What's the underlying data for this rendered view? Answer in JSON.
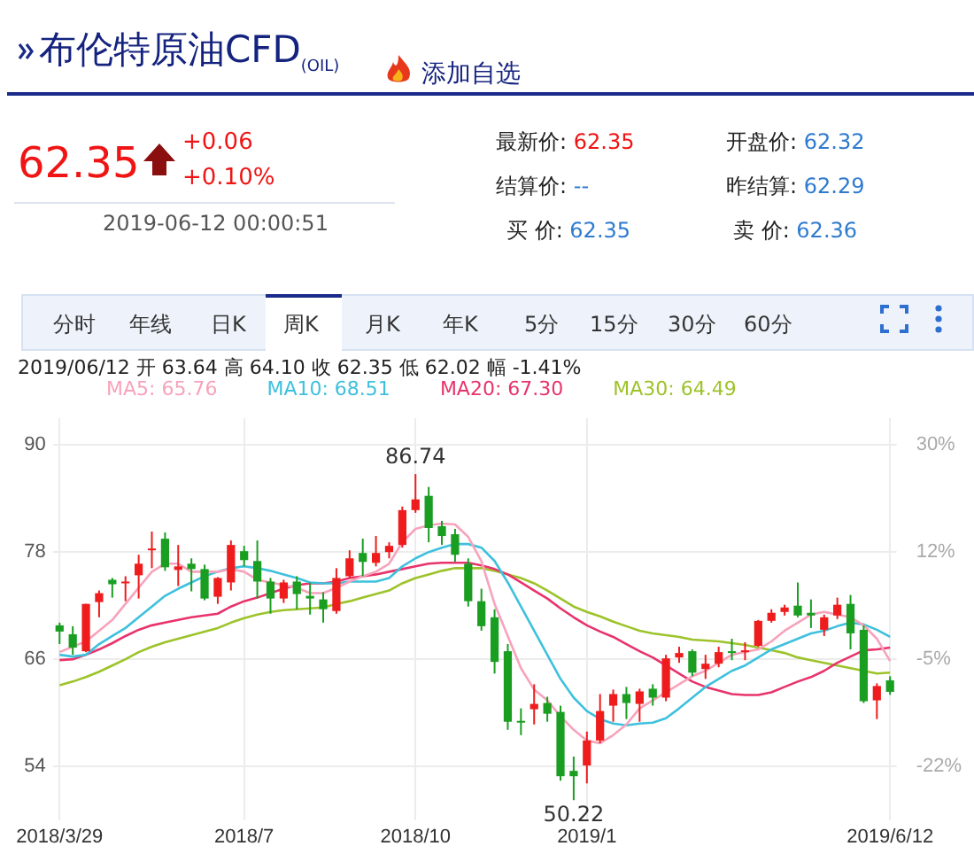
{
  "chart_data": {
    "type": "candlestick",
    "title": "布伦特原油CFD$_{(OIL)}$",
    "categories": [
      "2018/3/29",
      null,
      null,
      null,
      null,
      null,
      null,
      null,
      null,
      null,
      null,
      null,
      null,
      null,
      "2018/7",
      null,
      null,
      null,
      null,
      null,
      null,
      null,
      null,
      null,
      null,
      null,
      null,
      "2018/10",
      null,
      null,
      null,
      null,
      null,
      null,
      null,
      null,
      null,
      null,
      null,
      null,
      "2019/1",
      null,
      null,
      null,
      null,
      null,
      null,
      null,
      null,
      null,
      null,
      null,
      null,
      null,
      null,
      null,
      null,
      null,
      null,
      null,
      null,
      null,
      null,
      "2019/6/12"
    ],
    "ohlc": [
      [
        69.8,
        70.1,
        67.7,
        69.1
      ],
      [
        68.8,
        69.7,
        66.5,
        67.3
      ],
      [
        66.9,
        72.2,
        66.8,
        72.2
      ],
      [
        72.4,
        73.7,
        70.7,
        73.4
      ],
      [
        74.9,
        75.1,
        72.9,
        74.4
      ],
      [
        74.5,
        75.3,
        72.5,
        74.7
      ],
      [
        75.4,
        77.7,
        72.8,
        76.7
      ],
      [
        78.2,
        80.3,
        76.2,
        78.4
      ],
      [
        79.5,
        80.2,
        75.9,
        76.3
      ],
      [
        76.0,
        78.8,
        74.2,
        76.4
      ],
      [
        76.7,
        77.3,
        73.6,
        76.1
      ],
      [
        76.1,
        76.6,
        72.6,
        72.8
      ],
      [
        73.0,
        75.2,
        72.2,
        75.1
      ],
      [
        74.6,
        79.3,
        73.7,
        78.8
      ],
      [
        78.1,
        78.7,
        76.4,
        77.1
      ],
      [
        77.0,
        79.3,
        72.8,
        74.7
      ],
      [
        74.7,
        75.1,
        71.1,
        72.8
      ],
      [
        72.8,
        74.9,
        72.3,
        74.6
      ],
      [
        74.7,
        75.3,
        71.6,
        73.3
      ],
      [
        73.1,
        74.6,
        71.0,
        72.8
      ],
      [
        72.7,
        73.5,
        70.1,
        71.6
      ],
      [
        71.4,
        76.2,
        71.1,
        75.1
      ],
      [
        75.3,
        78.2,
        75.1,
        77.3
      ],
      [
        77.9,
        79.5,
        75.3,
        76.9
      ],
      [
        76.8,
        79.8,
        76.4,
        77.9
      ],
      [
        78.0,
        79.1,
        77.3,
        78.7
      ],
      [
        78.8,
        83.1,
        78.5,
        82.7
      ],
      [
        82.7,
        86.74,
        82.4,
        83.9
      ],
      [
        84.3,
        85.3,
        79.1,
        80.7
      ],
      [
        80.9,
        81.5,
        78.8,
        79.8
      ],
      [
        80.0,
        80.6,
        76.9,
        77.7
      ],
      [
        76.7,
        77.3,
        71.9,
        72.5
      ],
      [
        72.5,
        73.9,
        69.2,
        69.7
      ],
      [
        70.7,
        71.6,
        64.4,
        65.7
      ],
      [
        66.9,
        67.7,
        58.1,
        59.0
      ],
      [
        59.1,
        60.5,
        57.5,
        58.9
      ],
      [
        60.4,
        63.2,
        58.7,
        61.0
      ],
      [
        61.1,
        61.8,
        59.0,
        59.9
      ],
      [
        60.1,
        60.8,
        52.4,
        52.9
      ],
      [
        53.5,
        55.1,
        50.22,
        52.9
      ],
      [
        54.1,
        57.9,
        52.1,
        56.9
      ],
      [
        56.9,
        62.1,
        56.6,
        60.2
      ],
      [
        60.8,
        62.6,
        59.0,
        62.1
      ],
      [
        62.1,
        62.9,
        59.3,
        61.1
      ],
      [
        61.0,
        62.7,
        59.0,
        62.4
      ],
      [
        62.7,
        63.2,
        60.8,
        61.7
      ],
      [
        61.7,
        66.5,
        61.3,
        66.1
      ],
      [
        66.2,
        67.4,
        65.6,
        66.7
      ],
      [
        66.9,
        67.1,
        64.1,
        64.5
      ],
      [
        64.9,
        66.5,
        63.8,
        65.5
      ],
      [
        65.5,
        67.4,
        65.1,
        66.8
      ],
      [
        66.9,
        68.3,
        65.9,
        66.7
      ],
      [
        66.8,
        67.9,
        65.9,
        67.0
      ],
      [
        67.5,
        70.4,
        67.4,
        70.3
      ],
      [
        70.3,
        71.6,
        70.1,
        71.2
      ],
      [
        71.3,
        72.1,
        70.9,
        71.8
      ],
      [
        72.0,
        74.6,
        70.7,
        70.9
      ],
      [
        71.2,
        72.7,
        69.5,
        70.9
      ],
      [
        69.3,
        71.0,
        68.6,
        70.7
      ],
      [
        70.9,
        72.9,
        70.5,
        72.1
      ],
      [
        72.2,
        73.2,
        67.1,
        68.9
      ],
      [
        69.3,
        69.8,
        61.1,
        61.3
      ],
      [
        61.4,
        63.3,
        59.3,
        63.0
      ],
      [
        63.64,
        64.1,
        62.02,
        62.35
      ]
    ],
    "series": [
      {
        "type": "line",
        "name": "MA5: 65.76",
        "color": "#f7a3bb",
        "values": [
          66.8,
          67.4,
          68.0,
          69.2,
          70.4,
          72.2,
          74.0,
          75.8,
          76.7,
          76.7,
          75.8,
          75.8,
          75.8,
          76.1,
          75.8,
          74.9,
          74.6,
          74.3,
          74.0,
          73.4,
          73.4,
          74.0,
          74.7,
          75.3,
          75.8,
          76.7,
          79.1,
          80.6,
          81.0,
          81.2,
          81.1,
          79.7,
          77.0,
          72.2,
          68.6,
          65.0,
          62.6,
          61.4,
          59.6,
          58.1,
          56.9,
          56.6,
          57.5,
          58.7,
          60.5,
          61.4,
          62.3,
          63.2,
          64.1,
          64.7,
          65.6,
          66.5,
          66.8,
          67.1,
          68.0,
          69.2,
          70.1,
          71.0,
          71.3,
          71.0,
          70.7,
          69.8,
          68.3,
          65.8
        ]
      },
      {
        "type": "line",
        "name": "MA10: 68.51",
        "color": "#3ec1dd",
        "values": [
          66.5,
          66.3,
          66.5,
          67.7,
          68.6,
          69.5,
          70.7,
          71.9,
          73.1,
          73.9,
          74.6,
          75.3,
          75.8,
          76.2,
          76.4,
          76.2,
          75.9,
          75.5,
          75.1,
          74.6,
          74.5,
          74.5,
          74.7,
          74.7,
          74.7,
          75.1,
          76.4,
          77.3,
          78.0,
          78.5,
          78.9,
          78.9,
          78.5,
          77.0,
          74.6,
          71.9,
          69.2,
          66.5,
          63.8,
          61.7,
          60.2,
          59.3,
          58.8,
          58.6,
          58.8,
          58.9,
          59.4,
          60.5,
          61.7,
          62.9,
          63.8,
          64.7,
          65.3,
          66.2,
          67.1,
          67.7,
          68.3,
          68.9,
          69.2,
          69.7,
          70.1,
          69.9,
          69.3,
          68.5
        ]
      },
      {
        "type": "line",
        "name": "MA20: 67.30",
        "color": "#e8336b",
        "values": [
          65.9,
          66.0,
          66.5,
          67.1,
          67.8,
          68.6,
          69.3,
          69.8,
          70.1,
          70.4,
          70.7,
          70.9,
          71.1,
          71.9,
          72.5,
          72.9,
          73.4,
          73.9,
          74.3,
          74.5,
          74.5,
          74.7,
          75.1,
          75.3,
          75.5,
          75.8,
          76.1,
          76.4,
          76.7,
          76.8,
          76.8,
          76.8,
          76.5,
          76.1,
          75.5,
          74.6,
          73.7,
          72.8,
          71.7,
          70.7,
          69.8,
          69.1,
          68.5,
          67.7,
          66.9,
          66.2,
          65.3,
          64.4,
          63.5,
          62.9,
          62.5,
          62.1,
          62.0,
          62.0,
          62.3,
          62.9,
          63.5,
          64.0,
          64.7,
          65.6,
          66.3,
          67.0,
          67.1,
          67.3
        ]
      },
      {
        "type": "line",
        "name": "MA30: 64.49",
        "color": "#9dc32a",
        "values": [
          63.1,
          63.5,
          64.0,
          64.6,
          65.3,
          66.0,
          66.8,
          67.4,
          67.9,
          68.3,
          68.7,
          69.1,
          69.5,
          70.1,
          70.6,
          71.0,
          71.3,
          71.5,
          71.6,
          71.7,
          71.8,
          72.2,
          72.5,
          72.9,
          73.3,
          73.7,
          74.5,
          75.1,
          75.5,
          75.9,
          76.2,
          76.2,
          76.2,
          75.9,
          75.5,
          75.1,
          74.5,
          73.7,
          72.8,
          71.9,
          71.3,
          70.8,
          70.2,
          69.7,
          69.2,
          68.9,
          68.7,
          68.5,
          68.2,
          68.1,
          68.0,
          67.8,
          67.6,
          67.3,
          67.0,
          66.7,
          66.2,
          65.9,
          65.6,
          65.3,
          65.0,
          64.7,
          64.4,
          64.5
        ]
      }
    ],
    "ylim": [
      48,
      93
    ],
    "yticks": [
      54,
      66,
      78,
      90
    ],
    "y2lim": [
      -30.84,
      34.0
    ],
    "y2ticks": [
      {
        "value": -22.2,
        "label": "-22%"
      },
      {
        "value": -4.9,
        "label": "-5%"
      },
      {
        "value": 12.4,
        "label": "12%"
      },
      {
        "value": 29.7,
        "label": "30%"
      }
    ],
    "grid": true,
    "legend": "top left",
    "annotations": [
      "添加自选",
      "62.35",
      "+0.06",
      "+0.10%",
      "2019-06-12 00:00:51",
      "最新价: 62.35",
      "开盘价: 62.32",
      "结算价: --",
      "昨结算: 62.29",
      "买 价: 62.35",
      "卖 价: 62.36",
      "分时",
      "年线",
      "日K",
      "周K",
      "月K",
      "年K",
      "5分",
      "15分",
      "30分",
      "60分",
      "2019/06/12 开 63.64 高 64.10 收 62.35 低 62.02 幅 -1.41%",
      {
        "text": "86.74",
        "x": "2018/10",
        "y": 86.74
      },
      {
        "text": "50.22",
        "y": 50.22
      }
    ]
  }
}
